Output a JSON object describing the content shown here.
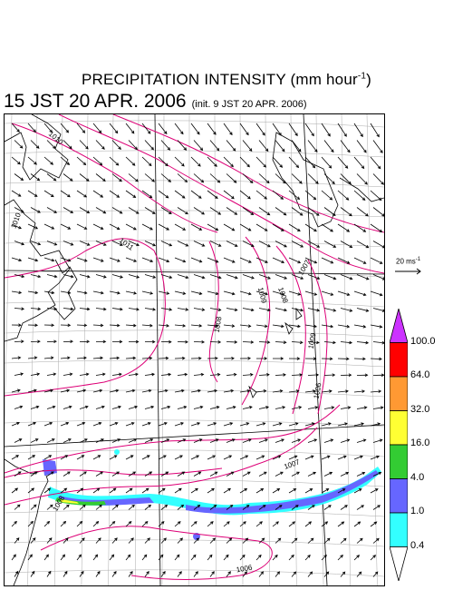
{
  "title": {
    "main": "PRECIPITATION INTENSITY (mm hour",
    "unit_exp": "-1",
    "unit_close": ")"
  },
  "subtitle": {
    "valid": "15 JST 20 APR. 2006",
    "init": "(init. 9 JST 20 APR. 2006)"
  },
  "wind_scale": {
    "label": "20 ms",
    "exp": "-1"
  },
  "colorbar": {
    "levels": [
      "100.0",
      "64.0",
      "32.0",
      "16.0",
      "4.0",
      "1.0",
      "0.4"
    ],
    "colors": [
      "#cc33ff",
      "#ff0000",
      "#ff9933",
      "#ffff33",
      "#33cc33",
      "#6666ff",
      "#33ffff",
      "#ffffff"
    ]
  },
  "isobars": {
    "labels": [
      "1010",
      "1011",
      "1010",
      "1009",
      "1008",
      "1007",
      "1008",
      "1009",
      "1007",
      "1006",
      "1008",
      "1006"
    ],
    "color": "#dd0077"
  },
  "colors": {
    "land_line": "#000000",
    "grid_line": "#999999",
    "vector": "#000000"
  }
}
